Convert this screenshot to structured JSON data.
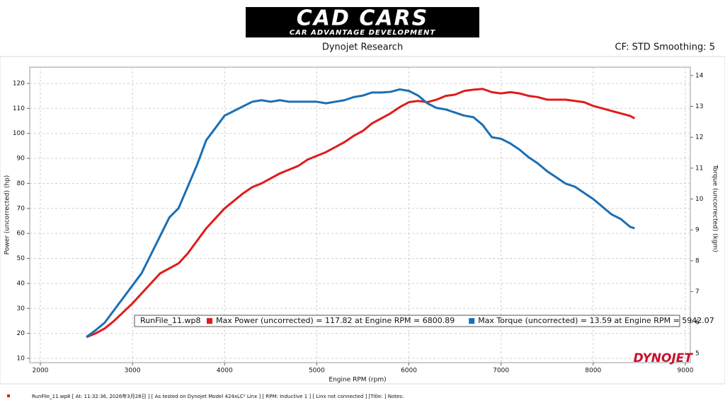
{
  "logo": {
    "title": "CAD CARS",
    "subtitle": "CAR ADVANTAGE DEVELOPMENT"
  },
  "footer": "RunFile_11.wp8  [  At:  11:32:36,  2026年3月28日 ] [ As tested on Dynojet Model 424xLC² Linx ] [ RPM: Inductive 1 ] [ Linx not connected ] [Title: ]  Notes:",
  "watermark": "DYNOJET",
  "chart_data": {
    "type": "line",
    "title": "Dynojet Research",
    "annotation": "CF: STD Smoothing: 5",
    "legend_title": "RunFile_11.wp8",
    "x_label": "Engine RPM (rpm)",
    "y_label": "Power (uncorrected) (hp)",
    "y2_label": "Torque (uncorrected) (kgm)",
    "x": [
      2500,
      2600,
      2700,
      2800,
      2900,
      3000,
      3100,
      3200,
      3300,
      3400,
      3500,
      3600,
      3700,
      3800,
      3900,
      4000,
      4100,
      4200,
      4300,
      4400,
      4500,
      4600,
      4700,
      4800,
      4900,
      5000,
      5100,
      5200,
      5300,
      5400,
      5500,
      5600,
      5700,
      5800,
      5900,
      6000,
      6100,
      6200,
      6300,
      6400,
      6500,
      6600,
      6700,
      6800,
      6900,
      7000,
      7100,
      7200,
      7300,
      7400,
      7500,
      7600,
      7700,
      7800,
      7900,
      8000,
      8100,
      8200,
      8300,
      8400,
      8450
    ],
    "series": [
      {
        "name": "Max Power (uncorrected) = 117.82 at Engine RPM = 6800.89",
        "color": "#e01b1b",
        "values": [
          18.5,
          20,
          22,
          25,
          28.5,
          32,
          36,
          40,
          44,
          46,
          48,
          52,
          57,
          62,
          66,
          70,
          73,
          76,
          78.5,
          80,
          82,
          84,
          85.5,
          87,
          89.5,
          91,
          92.5,
          94.5,
          96.5,
          99,
          101,
          104,
          106,
          108,
          110.5,
          112.5,
          113,
          112.5,
          113.5,
          115,
          115.5,
          117,
          117.5,
          117.8,
          116.5,
          116,
          116.5,
          116,
          115,
          114.5,
          113.5,
          113.5,
          113.5,
          113,
          112.5,
          111,
          110,
          109,
          108,
          107,
          106
        ]
      },
      {
        "name": "Max Torque (uncorrected) = 13.59 at Engine RPM = 5942.07",
        "color": "#1a6fb5",
        "axis": "y2",
        "values": [
          5.53,
          5.75,
          6.0,
          6.4,
          6.8,
          7.2,
          7.6,
          8.2,
          8.8,
          9.4,
          9.7,
          10.4,
          11.1,
          11.9,
          12.3,
          12.7,
          12.85,
          13.0,
          13.15,
          13.2,
          13.15,
          13.2,
          13.15,
          13.15,
          13.15,
          13.15,
          13.1,
          13.15,
          13.2,
          13.3,
          13.35,
          13.45,
          13.45,
          13.47,
          13.55,
          13.5,
          13.35,
          13.1,
          12.95,
          12.9,
          12.8,
          12.7,
          12.65,
          12.4,
          12.0,
          11.95,
          11.8,
          11.6,
          11.35,
          11.15,
          10.9,
          10.7,
          10.5,
          10.4,
          10.2,
          10.0,
          9.75,
          9.5,
          9.35,
          9.1,
          9.05
        ]
      }
    ],
    "xlim": [
      1885,
      9054
    ],
    "xticks": [
      2000,
      3000,
      4000,
      5000,
      6000,
      7000,
      8000,
      9000
    ],
    "ylim": [
      8.3,
      126.5
    ],
    "yticks": [
      10,
      20,
      30,
      40,
      50,
      60,
      70,
      80,
      90,
      100,
      110,
      120
    ],
    "y2lim": [
      4.7,
      14.27
    ],
    "y2ticks": [
      5,
      6,
      7,
      8,
      9,
      10,
      11,
      12,
      13,
      14
    ],
    "grid": true
  }
}
